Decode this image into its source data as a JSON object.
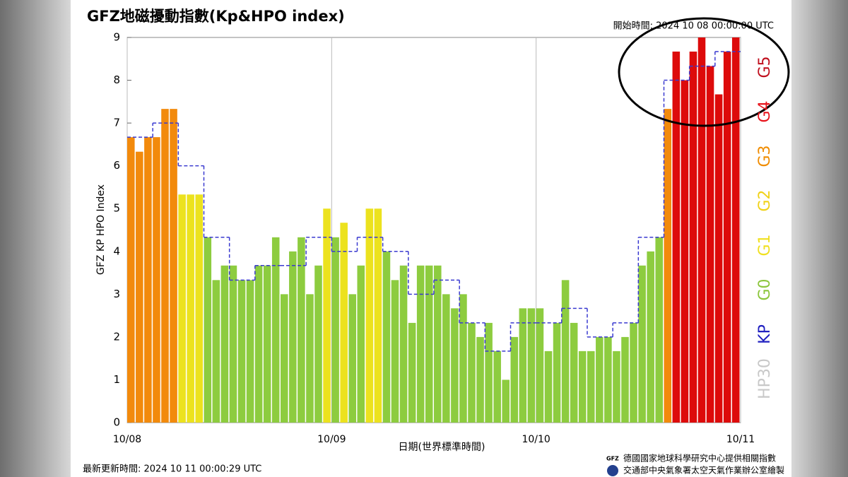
{
  "chart_data": {
    "type": "bar",
    "title": "GFZ地磁擾動指數(Kp&HPO index)",
    "start_time": "開始時間: 2024 10 08 00:00:00 UTC",
    "xlabel": "日期(世界標準時間)",
    "ylabel": "GFZ KP HPO Index",
    "updated": "最新更新時間: 2024 10 11 00:00:29 UTC",
    "credits": [
      "德國國家地球科學研究中心提供相關指數",
      "交通部中央氣象署太空天氣作業辦公室繪製"
    ],
    "values": [
      6.67,
      6.33,
      6.67,
      6.67,
      7.33,
      7.33,
      5.33,
      5.33,
      5.33,
      4.33,
      3.33,
      3.67,
      3.67,
      3.33,
      3.33,
      3.67,
      3.67,
      4.33,
      3.0,
      4.0,
      4.33,
      3.0,
      3.67,
      5.0,
      4.33,
      4.67,
      3.0,
      3.67,
      5.0,
      5.0,
      4.0,
      3.33,
      3.67,
      2.33,
      3.67,
      3.67,
      3.67,
      3.0,
      2.67,
      3.0,
      2.33,
      2.0,
      2.33,
      1.67,
      1.0,
      2.0,
      2.67,
      2.67,
      2.67,
      1.67,
      2.33,
      3.33,
      2.33,
      1.67,
      1.67,
      2.0,
      2.0,
      1.67,
      2.0,
      2.33,
      3.67,
      4.0,
      4.33,
      7.33,
      8.67,
      8.0,
      8.67,
      9.0,
      8.33,
      7.67,
      8.67,
      9.0
    ],
    "colors": [
      "#f28a0c",
      "#f28a0c",
      "#f28a0c",
      "#f28a0c",
      "#f28a0c",
      "#f28a0c",
      "#ece21e",
      "#ece21e",
      "#ece21e",
      "#8dcc3f",
      "#8dcc3f",
      "#8dcc3f",
      "#8dcc3f",
      "#8dcc3f",
      "#8dcc3f",
      "#8dcc3f",
      "#8dcc3f",
      "#8dcc3f",
      "#8dcc3f",
      "#8dcc3f",
      "#8dcc3f",
      "#8dcc3f",
      "#8dcc3f",
      "#ece21e",
      "#8dcc3f",
      "#ece21e",
      "#8dcc3f",
      "#8dcc3f",
      "#ece21e",
      "#ece21e",
      "#8dcc3f",
      "#8dcc3f",
      "#8dcc3f",
      "#8dcc3f",
      "#8dcc3f",
      "#8dcc3f",
      "#8dcc3f",
      "#8dcc3f",
      "#8dcc3f",
      "#8dcc3f",
      "#8dcc3f",
      "#8dcc3f",
      "#8dcc3f",
      "#8dcc3f",
      "#8dcc3f",
      "#8dcc3f",
      "#8dcc3f",
      "#8dcc3f",
      "#8dcc3f",
      "#8dcc3f",
      "#8dcc3f",
      "#8dcc3f",
      "#8dcc3f",
      "#8dcc3f",
      "#8dcc3f",
      "#8dcc3f",
      "#8dcc3f",
      "#8dcc3f",
      "#8dcc3f",
      "#8dcc3f",
      "#8dcc3f",
      "#8dcc3f",
      "#8dcc3f",
      "#f28a0c",
      "#dd0b0b",
      "#dd0b0b",
      "#dd0b0b",
      "#dd0b0b",
      "#dd0b0b",
      "#dd0b0b",
      "#dd0b0b",
      "#dd0b0b"
    ],
    "kp": {
      "color": "#3a3ad0",
      "values": [
        6.67,
        7.0,
        6.0,
        4.33,
        3.33,
        3.67,
        3.67,
        4.33,
        4.0,
        4.33,
        4.0,
        3.0,
        3.33,
        2.33,
        1.67,
        2.33,
        2.33,
        2.67,
        2.0,
        2.33,
        4.33,
        8.0,
        8.33,
        8.67
      ]
    },
    "scale_labels": [
      {
        "label": "G5",
        "color": "#c0101e"
      },
      {
        "label": "G4",
        "color": "#e8141c"
      },
      {
        "label": "G3",
        "color": "#f08c00"
      },
      {
        "label": "G2",
        "color": "#f0d21a"
      },
      {
        "label": "G1",
        "color": "#f0e020"
      },
      {
        "label": "G0",
        "color": "#8cc63c"
      },
      {
        "label": "KP",
        "color": "#2020c0"
      },
      {
        "label": "HP30",
        "color": "#c8c8c8"
      }
    ],
    "xlim": [
      0,
      72
    ],
    "xticks": [
      {
        "value": 0,
        "label": "10/08"
      },
      {
        "value": 24,
        "label": "10/09"
      },
      {
        "value": 48,
        "label": "10/10"
      },
      {
        "value": 72,
        "label": "10/11"
      }
    ],
    "ylim": [
      0,
      9
    ],
    "yticks": [
      0,
      1,
      2,
      3,
      4,
      5,
      6,
      7,
      8,
      9
    ],
    "grid": true
  }
}
